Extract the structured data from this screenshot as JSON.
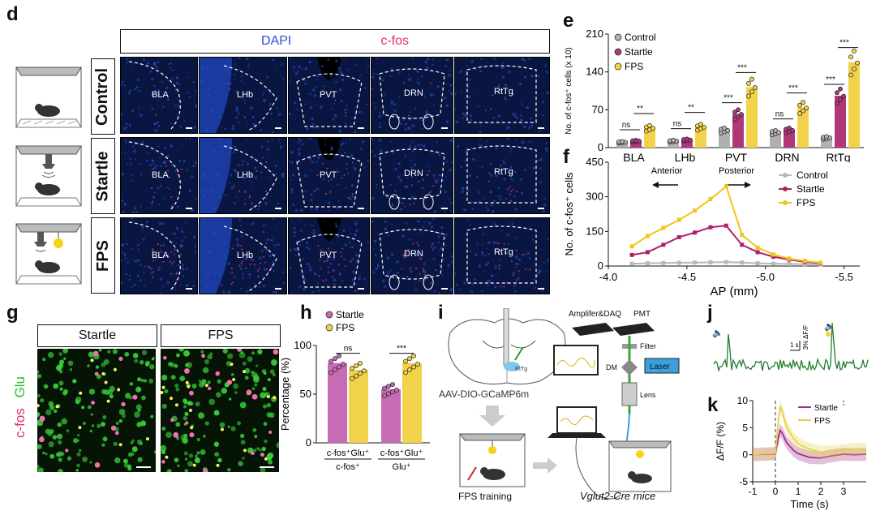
{
  "panels": {
    "d": "d",
    "e": "e",
    "f": "f",
    "g": "g",
    "h": "h",
    "i": "i",
    "j": "j",
    "k": "k"
  },
  "panel_d": {
    "stain_dapi": "DAPI",
    "stain_cfos": "c-fos",
    "rows": [
      "Control",
      "Startle",
      "FPS"
    ],
    "regions": [
      "BLA",
      "LHb",
      "PVT",
      "DRN",
      "RtTg"
    ],
    "colors": {
      "dapi": "#2a4fd0",
      "cfos": "#e0307a",
      "tissue": "#0a1642"
    }
  },
  "panel_g": {
    "columns": [
      "Startle",
      "FPS"
    ],
    "row_label_cfos": "c-fos",
    "row_label_glu": "Glu"
  },
  "panel_i": {
    "virus": "AAV-DIO-GCaMP6m",
    "rttg_label": "RtTg",
    "amplifier": "Amplifer&DAQ",
    "pmt": "PMT",
    "filter": "Filter",
    "dm": "DM",
    "laser": "Laser",
    "lens": "Lens",
    "training": "FPS training",
    "mice": "Vglut2-Cre mice"
  },
  "panel_j": {
    "scale_time": "1 s",
    "scale_amp": "3% ΔF/F"
  },
  "chart_data": [
    {
      "id": "e",
      "type": "bar",
      "ylabel": "No. of c-fos⁺ cells (x 10)",
      "ylim": [
        0,
        210
      ],
      "yticks": [
        0,
        70,
        140,
        210
      ],
      "categories": [
        "BLA",
        "LHb",
        "PVT",
        "DRN",
        "RtTg"
      ],
      "series": [
        {
          "name": "Control",
          "color": "#b0b0b0",
          "values": [
            10,
            12,
            32,
            28,
            18
          ]
        },
        {
          "name": "Startle",
          "color": "#b0387a",
          "values": [
            12,
            14,
            62,
            32,
            96
          ]
        },
        {
          "name": "FPS",
          "color": "#f2d24a",
          "values": [
            36,
            38,
            112,
            74,
            158
          ]
        }
      ],
      "significance": [
        {
          "pair": "Control-Startle",
          "labels": [
            "ns",
            "ns",
            "***",
            "ns",
            "***"
          ]
        },
        {
          "pair": "Startle-FPS",
          "labels": [
            "**",
            "**",
            "***",
            "***",
            "***"
          ]
        }
      ]
    },
    {
      "id": "f",
      "type": "line",
      "xlabel": "AP (mm)",
      "ylabel": "No. of c-fos⁺ cells",
      "xlim": [
        -4.0,
        -5.6
      ],
      "ylim": [
        0,
        450
      ],
      "xticks": [
        -4.0,
        -4.5,
        -5.0,
        -5.5
      ],
      "yticks": [
        0,
        150,
        300,
        450
      ],
      "annotations": {
        "left": "Anterior",
        "right": "Posterior"
      },
      "x": [
        -4.15,
        -4.25,
        -4.35,
        -4.45,
        -4.55,
        -4.65,
        -4.75,
        -4.85,
        -4.95,
        -5.05,
        -5.15,
        -5.25,
        -5.35
      ],
      "series": [
        {
          "name": "Control",
          "color": "#b8b8b8",
          "values": [
            10,
            12,
            13,
            14,
            15,
            16,
            17,
            15,
            12,
            10,
            9,
            8,
            7
          ]
        },
        {
          "name": "Startle",
          "color": "#b0206a",
          "values": [
            48,
            60,
            92,
            125,
            145,
            168,
            175,
            92,
            60,
            40,
            28,
            18,
            12
          ]
        },
        {
          "name": "FPS",
          "color": "#f0c518",
          "values": [
            85,
            130,
            165,
            200,
            240,
            290,
            345,
            135,
            80,
            50,
            32,
            22,
            14
          ]
        }
      ]
    },
    {
      "id": "h",
      "type": "bar",
      "ylabel": "Percentage (%)",
      "ylim": [
        0,
        100
      ],
      "yticks": [
        0,
        50,
        100
      ],
      "categories": [
        "c-fos⁺Glu⁺ / c-fos⁺",
        "c-fos⁺Glu⁺ / Glu⁺"
      ],
      "category_top": [
        "c-fos⁺Glu⁺",
        "c-fos⁺Glu⁺"
      ],
      "category_bottom": [
        "c-fos⁺",
        "Glu⁺"
      ],
      "series": [
        {
          "name": "Startle",
          "color": "#c86bb5",
          "values": [
            82,
            55
          ]
        },
        {
          "name": "FPS",
          "color": "#f2d24a",
          "values": [
            75,
            82
          ]
        }
      ],
      "significance": [
        "ns",
        "***"
      ]
    },
    {
      "id": "k",
      "type": "line",
      "xlabel": "Time (s)",
      "ylabel": "ΔF/F (%)",
      "xlim": [
        -1,
        4
      ],
      "ylim": [
        -5,
        10
      ],
      "xticks": [
        -1,
        0,
        1,
        2,
        3
      ],
      "yticks": [
        -5,
        0,
        5,
        10
      ],
      "x": [
        -1,
        -0.5,
        0,
        0.1,
        0.2,
        0.3,
        0.5,
        0.8,
        1.0,
        1.5,
        2.0,
        2.5,
        3.0,
        3.5,
        4.0
      ],
      "series": [
        {
          "name": "Startle",
          "color": "#a0308a",
          "values": [
            0,
            0.1,
            0.2,
            2.5,
            4.5,
            4.0,
            2.2,
            0.8,
            0.2,
            -0.5,
            -0.6,
            -0.2,
            0.1,
            0.0,
            0.1
          ]
        },
        {
          "name": "FPS",
          "color": "#e8d04a",
          "values": [
            0,
            0.2,
            0.3,
            5,
            9,
            8,
            5,
            3,
            2,
            1,
            0.5,
            0.5,
            0.8,
            1,
            1
          ]
        }
      ]
    }
  ]
}
